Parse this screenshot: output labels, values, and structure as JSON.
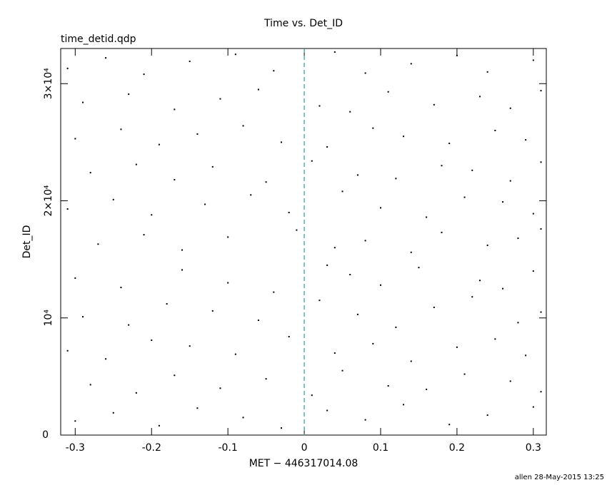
{
  "chart_data": {
    "type": "scatter",
    "title": "Time vs. Det_ID",
    "subtitle": "time_detid.qdp",
    "x_label": "MET − 446317014.08",
    "y_label": "Det_ID",
    "xlim": [
      -0.319,
      0.317
    ],
    "xticks": [
      -0.3,
      -0.2,
      -0.1,
      0,
      0.1,
      0.2,
      0.3
    ],
    "ylim": [
      0,
      33000
    ],
    "yticks": [
      0,
      {
        "value": 10000,
        "label": "10⁴"
      },
      {
        "value": 20000,
        "label": "2×10⁴"
      },
      {
        "value": 30000,
        "label": "3×10⁴"
      }
    ],
    "vline_x": 0,
    "vline_color": "#2a9a9a",
    "series": [
      {
        "color": "#000000",
        "x": [
          -0.3,
          -0.25,
          -0.19,
          -0.14,
          -0.08,
          -0.03,
          0.03,
          0.08,
          0.13,
          0.19,
          0.24,
          0.3,
          -0.28,
          -0.22,
          -0.17,
          -0.11,
          -0.05,
          0.01,
          0.05,
          0.11,
          0.16,
          0.21,
          0.27,
          0.31,
          -0.31,
          -0.26,
          -0.2,
          -0.15,
          -0.09,
          -0.02,
          0.04,
          0.09,
          0.14,
          0.2,
          0.25,
          0.29,
          -0.29,
          -0.23,
          -0.18,
          -0.12,
          -0.06,
          0.02,
          0.07,
          0.12,
          0.17,
          0.22,
          0.28,
          0.31,
          -0.3,
          -0.24,
          -0.16,
          -0.1,
          -0.04,
          0.03,
          0.06,
          0.1,
          0.15,
          0.23,
          0.26,
          0.3,
          -0.27,
          -0.21,
          -0.16,
          -0.1,
          -0.01,
          0.04,
          0.08,
          0.14,
          0.18,
          0.24,
          0.28,
          0.31,
          -0.31,
          -0.25,
          -0.2,
          -0.13,
          -0.07,
          -0.02,
          0.05,
          0.1,
          0.16,
          0.21,
          0.26,
          0.3,
          -0.28,
          -0.22,
          -0.17,
          -0.12,
          -0.05,
          0.01,
          0.07,
          0.12,
          0.18,
          0.22,
          0.27,
          0.31,
          -0.3,
          -0.24,
          -0.19,
          -0.14,
          -0.08,
          -0.03,
          0.03,
          0.09,
          0.13,
          0.19,
          0.25,
          0.29,
          -0.29,
          -0.23,
          -0.17,
          -0.11,
          -0.06,
          0.02,
          0.06,
          0.11,
          0.17,
          0.23,
          0.27,
          0.31,
          -0.31,
          -0.26,
          -0.21,
          -0.15,
          -0.09,
          -0.04,
          0.04,
          0.08,
          0.14,
          0.2,
          0.24,
          0.3
        ],
        "values": [
          1200,
          1900,
          800,
          2300,
          1500,
          600,
          2100,
          1300,
          2600,
          900,
          1700,
          2400,
          4300,
          3600,
          5100,
          4000,
          4800,
          3400,
          5500,
          4200,
          3900,
          5200,
          4600,
          3700,
          7200,
          6500,
          8100,
          7600,
          6900,
          8400,
          7000,
          7800,
          6300,
          7500,
          8200,
          6800,
          10100,
          9400,
          11200,
          10600,
          9800,
          11500,
          10300,
          9200,
          10900,
          11800,
          9600,
          10500,
          13400,
          12600,
          14100,
          13000,
          12200,
          14500,
          13700,
          12800,
          14300,
          13200,
          12500,
          14000,
          16300,
          17100,
          15800,
          16900,
          17500,
          16000,
          16600,
          15600,
          17300,
          16200,
          16800,
          17600,
          19300,
          20100,
          18800,
          19700,
          20500,
          19000,
          20800,
          19400,
          18600,
          20300,
          19900,
          18900,
          22400,
          23100,
          21800,
          22900,
          21600,
          23400,
          22200,
          21900,
          23000,
          22600,
          21700,
          23300,
          25300,
          26100,
          24800,
          25700,
          26400,
          25000,
          24600,
          26200,
          25500,
          24900,
          26000,
          25200,
          28400,
          29100,
          27800,
          28700,
          29500,
          28100,
          27600,
          29300,
          28200,
          28900,
          27900,
          29400,
          31300,
          32200,
          30800,
          31900,
          32500,
          31100,
          32700,
          30900,
          31700,
          32400,
          31000,
          32000
        ]
      }
    ]
  },
  "footer": "allen 28-May-2015 13:25"
}
